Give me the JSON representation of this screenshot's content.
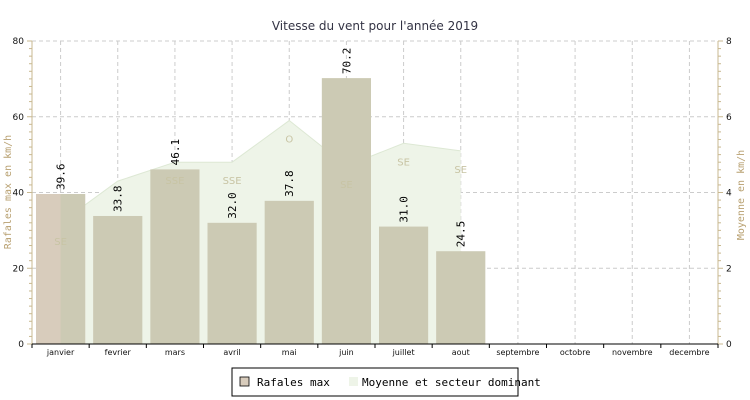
{
  "chart_data": {
    "type": "bar",
    "title": "Vitesse du vent pour l'année 2019",
    "categories": [
      "janvier",
      "fevrier",
      "mars",
      "avril",
      "mai",
      "juin",
      "juillet",
      "aout",
      "septembre",
      "octobre",
      "novembre",
      "decembre"
    ],
    "series": [
      {
        "name": "Rafales max",
        "type": "bar",
        "axis": "left",
        "values": [
          39.6,
          33.8,
          46.1,
          32.0,
          37.8,
          70.2,
          31.0,
          24.5,
          null,
          null,
          null,
          null
        ],
        "value_labels": [
          "39.6",
          "33.8",
          "46.1",
          "32.0",
          "37.8",
          "70.2",
          "31.0",
          "24.5",
          null,
          null,
          null,
          null
        ],
        "color": "#d8ccbc"
      },
      {
        "name": "Moyenne et secteur dominant",
        "type": "area",
        "axis": "right",
        "values": [
          3.2,
          4.3,
          4.8,
          4.8,
          5.9,
          4.7,
          5.3,
          5.1,
          null,
          null,
          null,
          null
        ],
        "direction_labels": [
          "SE",
          "",
          "SSE",
          "SSE",
          "O",
          "SE",
          "SE",
          "SE",
          null,
          null,
          null,
          null
        ],
        "color": "#eef4e8"
      }
    ],
    "ylabel": "Rafales max en km/h",
    "ylabel_right": "Moyenne en km/h",
    "ylim": [
      0,
      80
    ],
    "ylim_right": [
      0,
      8
    ],
    "yticks": [
      "0",
      "20",
      "40",
      "60",
      "80"
    ],
    "yticks_right": [
      "0",
      "2",
      "4",
      "6",
      "8"
    ],
    "grid": true,
    "legend_position": "bottom-center",
    "colors": {
      "bar": "#d8ccbc",
      "bar_overlap": "#cccab4",
      "area": "#eef4e8",
      "axis": "#c8b890",
      "grid": "#cccccc"
    }
  }
}
